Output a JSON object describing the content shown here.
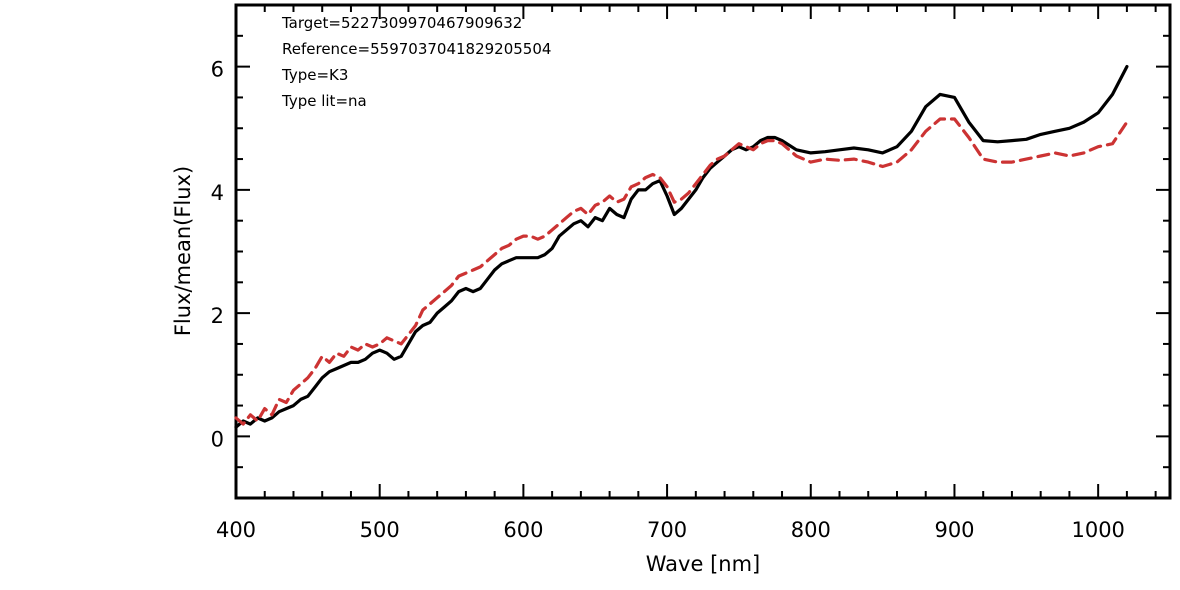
{
  "chart_data": {
    "type": "line",
    "title": "",
    "xlabel": "Wave [nm]",
    "ylabel": "Flux/mean(Flux)",
    "xlim": [
      400,
      1050
    ],
    "ylim": [
      -1,
      7
    ],
    "x_ticks": [
      "400",
      "500",
      "600",
      "700",
      "800",
      "900",
      "1000"
    ],
    "y_ticks": [
      "0",
      "2",
      "4",
      "6"
    ],
    "grid": false,
    "legend": "none",
    "annotations": [
      "Target=5227309970467909632",
      "Reference=5597037041829205504",
      "Type=K3",
      "Type lit=na"
    ],
    "series": [
      {
        "style": "solid",
        "color": "#000000",
        "x": [
          400,
          405,
          410,
          415,
          420,
          425,
          430,
          435,
          440,
          445,
          450,
          455,
          460,
          465,
          470,
          475,
          480,
          485,
          490,
          495,
          500,
          505,
          510,
          515,
          520,
          525,
          530,
          535,
          540,
          545,
          550,
          555,
          560,
          565,
          570,
          575,
          580,
          585,
          590,
          595,
          600,
          605,
          610,
          615,
          620,
          625,
          630,
          635,
          640,
          645,
          650,
          655,
          660,
          665,
          670,
          675,
          680,
          685,
          690,
          695,
          700,
          705,
          710,
          715,
          720,
          725,
          730,
          735,
          740,
          745,
          750,
          755,
          760,
          765,
          770,
          775,
          780,
          790,
          800,
          810,
          820,
          830,
          840,
          850,
          860,
          870,
          880,
          890,
          900,
          910,
          920,
          930,
          940,
          950,
          960,
          970,
          980,
          990,
          1000,
          1010,
          1020
        ],
        "y": [
          0.15,
          0.25,
          0.2,
          0.3,
          0.25,
          0.3,
          0.4,
          0.45,
          0.5,
          0.6,
          0.65,
          0.8,
          0.95,
          1.05,
          1.1,
          1.15,
          1.2,
          1.2,
          1.25,
          1.35,
          1.4,
          1.35,
          1.25,
          1.3,
          1.5,
          1.7,
          1.8,
          1.85,
          2.0,
          2.1,
          2.2,
          2.35,
          2.4,
          2.35,
          2.4,
          2.55,
          2.7,
          2.8,
          2.85,
          2.9,
          2.9,
          2.9,
          2.9,
          2.95,
          3.05,
          3.25,
          3.35,
          3.45,
          3.5,
          3.4,
          3.55,
          3.5,
          3.7,
          3.6,
          3.55,
          3.85,
          4.0,
          4.0,
          4.1,
          4.15,
          3.9,
          3.6,
          3.7,
          3.85,
          4.0,
          4.2,
          4.35,
          4.45,
          4.55,
          4.65,
          4.7,
          4.65,
          4.7,
          4.8,
          4.85,
          4.85,
          4.8,
          4.65,
          4.6,
          4.62,
          4.65,
          4.68,
          4.65,
          4.6,
          4.7,
          4.95,
          5.35,
          5.55,
          5.5,
          5.1,
          4.8,
          4.78,
          4.8,
          4.82,
          4.9,
          4.95,
          5.0,
          5.1,
          5.25,
          5.55,
          6.0
        ]
      },
      {
        "style": "dashed",
        "color": "#cc3333",
        "x": [
          400,
          405,
          410,
          415,
          420,
          425,
          430,
          435,
          440,
          445,
          450,
          455,
          460,
          465,
          470,
          475,
          480,
          485,
          490,
          495,
          500,
          505,
          510,
          515,
          520,
          525,
          530,
          535,
          540,
          545,
          550,
          555,
          560,
          565,
          570,
          575,
          580,
          585,
          590,
          595,
          600,
          605,
          610,
          615,
          620,
          625,
          630,
          635,
          640,
          645,
          650,
          655,
          660,
          665,
          670,
          675,
          680,
          685,
          690,
          695,
          700,
          705,
          710,
          715,
          720,
          725,
          730,
          735,
          740,
          745,
          750,
          755,
          760,
          765,
          770,
          775,
          780,
          790,
          800,
          810,
          820,
          830,
          840,
          850,
          860,
          870,
          880,
          890,
          900,
          910,
          920,
          930,
          940,
          950,
          960,
          970,
          980,
          990,
          1000,
          1010,
          1020
        ],
        "y": [
          0.3,
          0.2,
          0.35,
          0.25,
          0.45,
          0.35,
          0.6,
          0.55,
          0.75,
          0.85,
          0.95,
          1.1,
          1.3,
          1.2,
          1.35,
          1.3,
          1.45,
          1.4,
          1.5,
          1.45,
          1.5,
          1.6,
          1.55,
          1.5,
          1.65,
          1.8,
          2.05,
          2.15,
          2.25,
          2.35,
          2.45,
          2.6,
          2.65,
          2.7,
          2.75,
          2.85,
          2.95,
          3.05,
          3.1,
          3.2,
          3.25,
          3.25,
          3.2,
          3.25,
          3.35,
          3.45,
          3.55,
          3.65,
          3.7,
          3.6,
          3.75,
          3.8,
          3.9,
          3.8,
          3.85,
          4.05,
          4.1,
          4.2,
          4.25,
          4.2,
          4.05,
          3.8,
          3.85,
          3.95,
          4.1,
          4.25,
          4.4,
          4.5,
          4.55,
          4.65,
          4.75,
          4.7,
          4.65,
          4.75,
          4.8,
          4.8,
          4.75,
          4.55,
          4.45,
          4.5,
          4.48,
          4.5,
          4.45,
          4.38,
          4.45,
          4.65,
          4.95,
          5.15,
          5.15,
          4.85,
          4.5,
          4.45,
          4.45,
          4.5,
          4.55,
          4.6,
          4.55,
          4.6,
          4.7,
          4.75,
          5.1
        ]
      }
    ]
  }
}
